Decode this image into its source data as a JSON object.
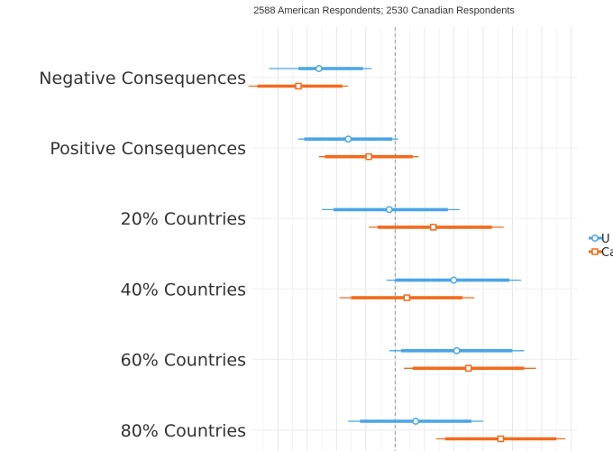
{
  "chart_data": {
    "type": "dot-interval",
    "subtitle": "2588 American Respondents; 2530 Canadian Respondents",
    "title": "",
    "xlabel": "",
    "ylabel": "",
    "xlim": [
      -0.49,
      0.62
    ],
    "reference_line": 0,
    "grid": true,
    "legend_position": "right",
    "categories": [
      "Negative Consequences",
      "Positive Consequences",
      "20% Countries",
      "40% Countries",
      "60% Countries",
      "80% Countries"
    ],
    "series": [
      {
        "name": "U",
        "color": "#4aa5e8",
        "marker": "circle",
        "estimate": [
          -0.26,
          -0.16,
          -0.02,
          0.2,
          0.21,
          0.07
        ],
        "ci_inner": [
          [
            -0.33,
            -0.11
          ],
          [
            -0.31,
            -0.01
          ],
          [
            -0.21,
            0.18
          ],
          [
            0.0,
            0.39
          ],
          [
            0.02,
            0.4
          ],
          [
            -0.12,
            0.26
          ]
        ],
        "ci_outer": [
          [
            -0.43,
            -0.08
          ],
          [
            -0.33,
            0.01
          ],
          [
            -0.25,
            0.22
          ],
          [
            -0.03,
            0.43
          ],
          [
            -0.02,
            0.44
          ],
          [
            -0.16,
            0.3
          ]
        ]
      },
      {
        "name": "Ca",
        "color": "#f26b1d",
        "marker": "square",
        "estimate": [
          -0.33,
          -0.09,
          0.13,
          0.04,
          0.25,
          0.36
        ],
        "ci_inner": [
          [
            -0.47,
            -0.18
          ],
          [
            -0.24,
            0.06
          ],
          [
            -0.06,
            0.33
          ],
          [
            -0.15,
            0.23
          ],
          [
            0.06,
            0.44
          ],
          [
            0.17,
            0.55
          ]
        ],
        "ci_outer": [
          [
            -0.5,
            -0.16
          ],
          [
            -0.26,
            0.08
          ],
          [
            -0.09,
            0.37
          ],
          [
            -0.19,
            0.27
          ],
          [
            0.03,
            0.48
          ],
          [
            0.14,
            0.58
          ]
        ]
      }
    ]
  }
}
